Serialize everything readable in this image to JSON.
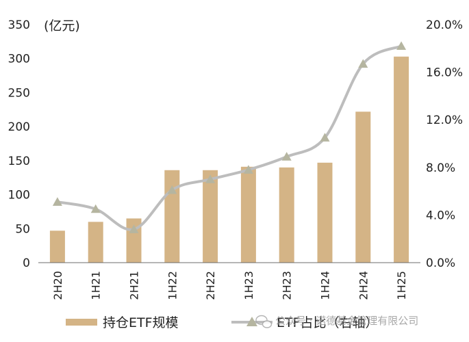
{
  "chart_data": {
    "type": "bar+line",
    "title": "",
    "unit_label": "(亿元)",
    "categories": [
      "2H20",
      "1H21",
      "2H21",
      "1H22",
      "2H22",
      "1H23",
      "2H23",
      "1H24",
      "2H24",
      "1H25"
    ],
    "y_left": {
      "range": [
        0,
        350
      ],
      "ticks": [
        "0",
        "50",
        "100",
        "150",
        "200",
        "250",
        "300",
        "350"
      ]
    },
    "y_right": {
      "range": [
        0,
        20
      ],
      "ticks": [
        "0.0%",
        "4.0%",
        "8.0%",
        "12.0%",
        "16.0%",
        "20.0%"
      ]
    },
    "series": [
      {
        "name": "持仓ETF规模",
        "kind": "bar",
        "axis": "left",
        "color": "#d4b486",
        "values": [
          47,
          60,
          65,
          136,
          136,
          141,
          140,
          147,
          222,
          303
        ]
      },
      {
        "name": "ETF占比（右轴）",
        "kind": "line",
        "axis": "right",
        "color": "#bdbdbd",
        "marker_color": "#b5b5a0",
        "values": [
          5.1,
          4.5,
          2.8,
          6.1,
          7.0,
          7.8,
          8.9,
          10.5,
          16.7,
          18.2
        ]
      }
    ],
    "legend_position": "bottom",
    "grid": false
  },
  "watermark": {
    "icon": "wechat-icon",
    "text": "公众号 · 诺德基金管理有限公司"
  }
}
